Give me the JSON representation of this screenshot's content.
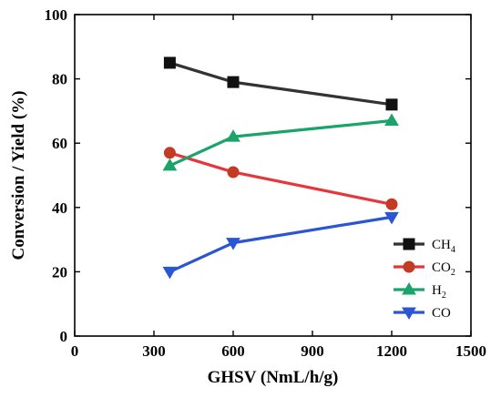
{
  "chart_data": {
    "type": "line",
    "x": [
      360,
      600,
      1200
    ],
    "xlabel": "GHSV (NmL/h/g)",
    "ylabel": "Conversion / Yield (%)",
    "xlim": [
      0,
      1500
    ],
    "ylim": [
      0,
      100
    ],
    "xticks": [
      0,
      300,
      600,
      900,
      1200,
      1500
    ],
    "yticks": [
      0,
      20,
      40,
      60,
      80,
      100
    ],
    "grid": false,
    "legend_position": "bottom-right",
    "series": [
      {
        "name": "CH4",
        "name_main": "CH",
        "name_sub": "4",
        "marker": "square",
        "color": "#333333",
        "values": [
          85,
          79,
          72
        ]
      },
      {
        "name": "CO2",
        "name_main": "CO",
        "name_sub": "2",
        "marker": "circle",
        "color": "#e8343a",
        "values": [
          57,
          51,
          41
        ]
      },
      {
        "name": "H2",
        "name_main": "H",
        "name_sub": "2",
        "marker": "triangle-up",
        "color": "#1aa36a",
        "values": [
          53,
          62,
          67
        ]
      },
      {
        "name": "CO",
        "name_main": "CO",
        "name_sub": "",
        "marker": "triangle-down",
        "color": "#2a55d4",
        "values": [
          20,
          29,
          37
        ]
      }
    ]
  }
}
